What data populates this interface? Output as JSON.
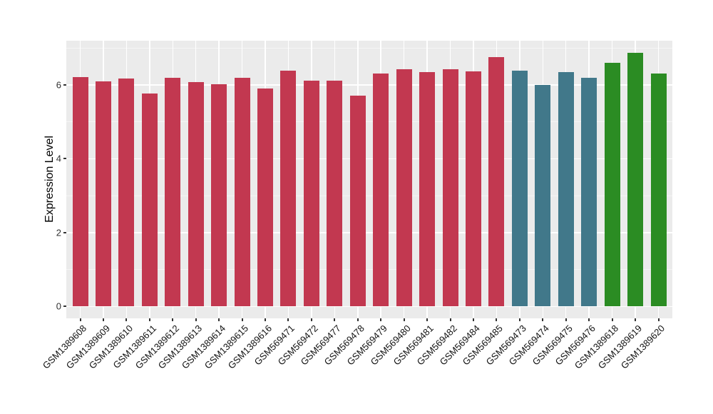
{
  "chart_data": {
    "type": "bar",
    "title": "",
    "xlabel": "",
    "ylabel": "Expression Level",
    "ylim": [
      0,
      7.2
    ],
    "yticks": [
      0,
      2,
      4,
      6
    ],
    "grid": "on",
    "legend": "none",
    "categories": [
      "GSM1389608",
      "GSM1389609",
      "GSM1389610",
      "GSM1389611",
      "GSM1389612",
      "GSM1389613",
      "GSM1389614",
      "GSM1389615",
      "GSM1389616",
      "GSM569471",
      "GSM569472",
      "GSM569477",
      "GSM569478",
      "GSM569479",
      "GSM569480",
      "GSM569481",
      "GSM569482",
      "GSM569484",
      "GSM569485",
      "GSM569473",
      "GSM569474",
      "GSM569475",
      "GSM569476",
      "GSM1389618",
      "GSM1389619",
      "GSM1389620"
    ],
    "values": [
      6.22,
      6.1,
      6.17,
      5.77,
      6.2,
      6.08,
      6.01,
      6.19,
      5.9,
      6.38,
      6.12,
      6.11,
      5.71,
      6.31,
      6.43,
      6.35,
      6.43,
      6.37,
      6.75,
      6.38,
      6.0,
      6.35,
      6.19,
      6.59,
      6.87,
      6.3
    ],
    "bar_colors": [
      "#c23850",
      "#c23850",
      "#c23850",
      "#c23850",
      "#c23850",
      "#c23850",
      "#c23850",
      "#c23850",
      "#c23850",
      "#c23850",
      "#c23850",
      "#c23850",
      "#c23850",
      "#c23850",
      "#c23850",
      "#c23850",
      "#c23850",
      "#c23850",
      "#c23850",
      "#41788a",
      "#41788a",
      "#41788a",
      "#41788a",
      "#2b8c23",
      "#2b8c23",
      "#2b8c23"
    ],
    "palette": {
      "group1_crimson": "#c23850",
      "group2_teal": "#41788a",
      "group3_green": "#2b8c23"
    },
    "style_colors": {
      "panel_background": "#ebebeb",
      "grid_major": "#ffffff",
      "grid_minor": "#f5f5f5",
      "axis_text": "#111111",
      "tick_mark": "#333333",
      "figure_background": "#ffffff"
    }
  }
}
